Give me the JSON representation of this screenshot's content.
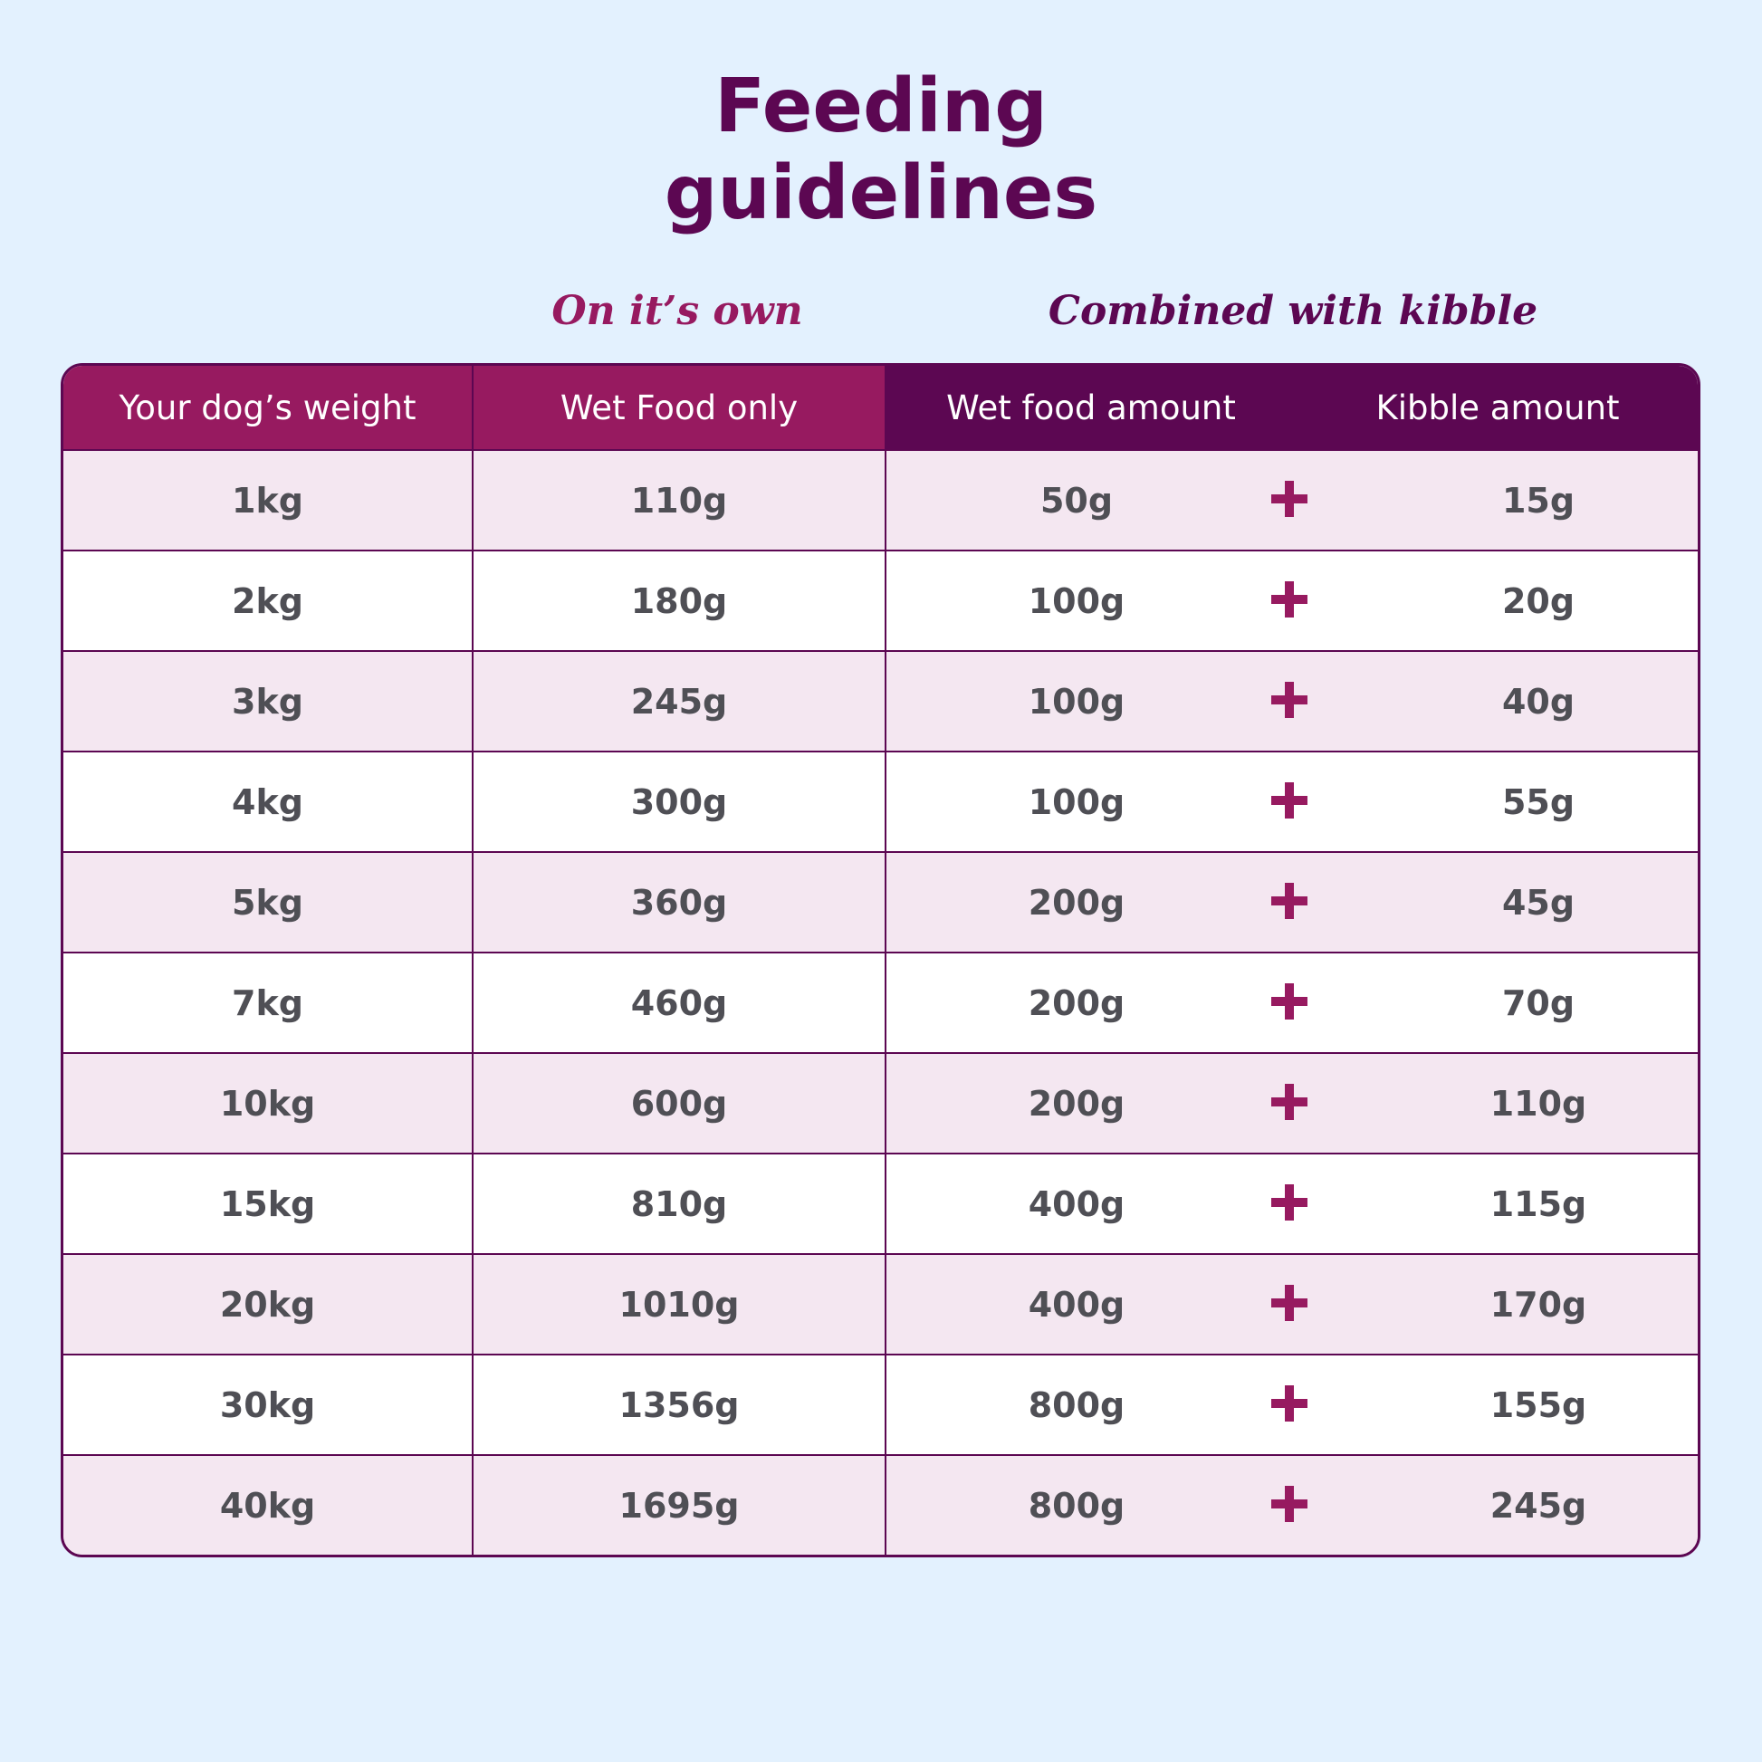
{
  "title_line1": "Feeding",
  "title_line2": "guidelines",
  "sections": {
    "own": "On it’s own",
    "combined": "Combined with kibble"
  },
  "headers": {
    "weight": "Your dog’s weight",
    "wet_only": "Wet Food only",
    "wet_amount": "Wet food amount",
    "kibble_amount": "Kibble amount"
  },
  "rows": [
    {
      "weight": "1kg",
      "wet_only": "110g",
      "wet_amount": "50g",
      "kibble": "15g"
    },
    {
      "weight": "2kg",
      "wet_only": "180g",
      "wet_amount": "100g",
      "kibble": "20g"
    },
    {
      "weight": "3kg",
      "wet_only": "245g",
      "wet_amount": "100g",
      "kibble": "40g"
    },
    {
      "weight": "4kg",
      "wet_only": "300g",
      "wet_amount": "100g",
      "kibble": "55g"
    },
    {
      "weight": "5kg",
      "wet_only": "360g",
      "wet_amount": "200g",
      "kibble": "45g"
    },
    {
      "weight": "7kg",
      "wet_only": "460g",
      "wet_amount": "200g",
      "kibble": "70g"
    },
    {
      "weight": "10kg",
      "wet_only": "600g",
      "wet_amount": "200g",
      "kibble": "110g"
    },
    {
      "weight": "15kg",
      "wet_only": "810g",
      "wet_amount": "400g",
      "kibble": "115g"
    },
    {
      "weight": "20kg",
      "wet_only": "1010g",
      "wet_amount": "400g",
      "kibble": "170g"
    },
    {
      "weight": "30kg",
      "wet_only": "1356g",
      "wet_amount": "800g",
      "kibble": "155g"
    },
    {
      "weight": "40kg",
      "wet_only": "1695g",
      "wet_amount": "800g",
      "kibble": "245g"
    }
  ],
  "colors": {
    "background": "#e3f1fe",
    "magenta": "#971a60",
    "plum": "#5c0752",
    "row_tint": "#f4e7f1",
    "text": "#4f4f55"
  },
  "icons": {
    "combine": "plus-icon"
  }
}
